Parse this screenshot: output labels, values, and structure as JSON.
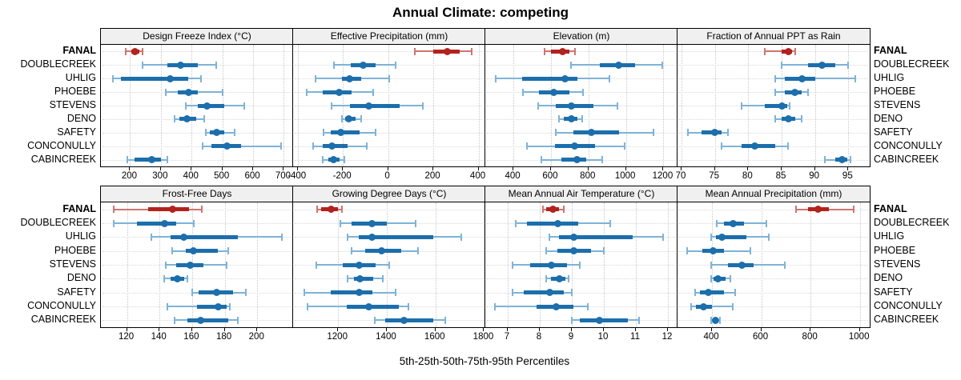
{
  "title": "Annual Climate: competing",
  "xlabel": "5th-25th-50th-75th-95th Percentiles",
  "sites": [
    "FANAL",
    "DOUBLECREEK",
    "UHLIG",
    "PHOEBE",
    "STEVENS",
    "DENO",
    "SAFETY",
    "CONCONULLY",
    "CABINCREEK"
  ],
  "highlight_site": "FANAL",
  "colors": {
    "highlight_main": "#b2231d",
    "highlight_light": "#cf7570",
    "normal_main": "#1c6eac",
    "normal_light": "#7fb3d8",
    "strip_bg": "#f0f0f0",
    "grid": "#c9c9c9"
  },
  "chart_data": {
    "type": "dotplot-intervals",
    "percentiles": [
      "5th",
      "25th",
      "50th",
      "75th",
      "95th"
    ],
    "legend_note": "5th-25th-50th-75th-95th Percentiles",
    "grid": "dotted",
    "panels": [
      {
        "title": "Design Freeze Index (°C)",
        "xlim": [
          105,
          730
        ],
        "ticks": [
          200,
          300,
          400,
          500,
          600,
          700
        ],
        "series": [
          [
            185,
            205,
            215,
            230,
            240
          ],
          [
            240,
            320,
            365,
            420,
            480
          ],
          [
            145,
            170,
            330,
            390,
            430
          ],
          [
            315,
            355,
            390,
            420,
            500
          ],
          [
            380,
            420,
            450,
            505,
            570
          ],
          [
            345,
            360,
            385,
            415,
            440
          ],
          [
            445,
            460,
            480,
            505,
            540
          ],
          [
            435,
            465,
            515,
            560,
            690
          ],
          [
            190,
            215,
            270,
            300,
            320
          ]
        ]
      },
      {
        "title": "Effective Precipitation (mm)",
        "xlim": [
          -420,
          430
        ],
        "ticks": [
          -400,
          -200,
          0,
          200,
          400
        ],
        "series": [
          [
            120,
            200,
            260,
            315,
            370
          ],
          [
            -240,
            -165,
            -110,
            -55,
            35
          ],
          [
            -320,
            -205,
            -170,
            -120,
            5
          ],
          [
            -360,
            -290,
            -215,
            -160,
            -65
          ],
          [
            -250,
            -170,
            -85,
            50,
            155
          ],
          [
            -205,
            -190,
            -175,
            -145,
            -120
          ],
          [
            -285,
            -255,
            -210,
            -125,
            -55
          ],
          [
            -330,
            -290,
            -250,
            -180,
            -95
          ],
          [
            -290,
            -265,
            -240,
            -215,
            -195
          ]
        ]
      },
      {
        "title": "Elevation (m)",
        "xlim": [
          250,
          1275
        ],
        "ticks": [
          400,
          600,
          800,
          1000,
          1200
        ],
        "series": [
          [
            565,
            600,
            660,
            700,
            730
          ],
          [
            705,
            860,
            960,
            1050,
            1195
          ],
          [
            305,
            445,
            675,
            740,
            910
          ],
          [
            450,
            535,
            615,
            700,
            770
          ],
          [
            530,
            625,
            710,
            825,
            955
          ],
          [
            645,
            670,
            710,
            740,
            765
          ],
          [
            625,
            720,
            815,
            965,
            1145
          ],
          [
            470,
            620,
            725,
            835,
            995
          ],
          [
            550,
            655,
            740,
            790,
            875
          ]
        ]
      },
      {
        "title": "Fraction of Annual PPT as Rain",
        "xlim": [
          69.4,
          98.2
        ],
        "ticks": [
          70,
          75,
          80,
          85,
          90,
          95
        ],
        "series": [
          [
            82.5,
            85,
            86,
            86.5,
            87
          ],
          [
            85,
            89,
            91,
            93,
            95
          ],
          [
            84,
            85.5,
            88,
            90,
            96
          ],
          [
            84,
            85.5,
            87,
            88,
            89
          ],
          [
            79,
            82.5,
            85,
            85.9,
            86.2
          ],
          [
            84,
            85,
            86,
            87,
            88
          ],
          [
            71,
            73,
            75,
            76,
            77
          ],
          [
            76,
            79,
            81,
            84,
            86
          ],
          [
            91.5,
            93,
            94,
            94.8,
            95.3
          ]
        ]
      },
      {
        "title": "Frost-Free Days",
        "xlim": [
          104,
          222
        ],
        "ticks": [
          120,
          140,
          160,
          180,
          200
        ],
        "series": [
          [
            112,
            133,
            148,
            158,
            166
          ],
          [
            112,
            126,
            143,
            150,
            161
          ],
          [
            135,
            147,
            155,
            188,
            215
          ],
          [
            148,
            156,
            161,
            176,
            182
          ],
          [
            144,
            150,
            159,
            167,
            181
          ],
          [
            143,
            147,
            151,
            155,
            157
          ],
          [
            160,
            164,
            175,
            185,
            193
          ],
          [
            145,
            163,
            176,
            181,
            183
          ],
          [
            149,
            157,
            165,
            182,
            188
          ]
        ]
      },
      {
        "title": "Growing Degree Days (°C)",
        "xlim": [
          1015,
          1805
        ],
        "ticks": [
          1200,
          1400,
          1600,
          1800
        ],
        "series": [
          [
            1115,
            1130,
            1170,
            1200,
            1215
          ],
          [
            1210,
            1255,
            1340,
            1400,
            1520
          ],
          [
            1240,
            1285,
            1340,
            1590,
            1705
          ],
          [
            1255,
            1310,
            1380,
            1460,
            1530
          ],
          [
            1110,
            1220,
            1285,
            1355,
            1410
          ],
          [
            1240,
            1265,
            1290,
            1345,
            1385
          ],
          [
            1060,
            1170,
            1285,
            1340,
            1435
          ],
          [
            1075,
            1235,
            1325,
            1450,
            1490
          ],
          [
            1350,
            1395,
            1470,
            1590,
            1640
          ]
        ]
      },
      {
        "title": "Mean Annual Air Temperature (°C)",
        "xlim": [
          6.3,
          12.3
        ],
        "ticks": [
          7,
          8,
          9,
          10,
          11,
          12
        ],
        "series": [
          [
            8.1,
            8.2,
            8.4,
            8.6,
            8.75
          ],
          [
            7.25,
            7.6,
            8.55,
            9.2,
            10.2
          ],
          [
            8.3,
            8.6,
            9.05,
            10.9,
            11.85
          ],
          [
            8.2,
            8.55,
            9.05,
            9.6,
            10
          ],
          [
            7.15,
            7.7,
            8.35,
            8.85,
            9.25
          ],
          [
            8.2,
            8.35,
            8.6,
            8.8,
            8.9
          ],
          [
            7.15,
            7.5,
            8.3,
            8.75,
            9
          ],
          [
            6.6,
            7.9,
            8.5,
            9.05,
            9.5
          ],
          [
            9,
            9.25,
            9.85,
            10.75,
            11.1
          ]
        ]
      },
      {
        "title": "Mean Annual Precipitation (mm)",
        "xlim": [
          260,
          1040
        ],
        "ticks": [
          400,
          600,
          800,
          1000
        ],
        "series": [
          [
            740,
            790,
            830,
            875,
            975
          ],
          [
            420,
            450,
            487,
            530,
            620
          ],
          [
            395,
            415,
            440,
            540,
            630
          ],
          [
            300,
            360,
            405,
            450,
            555
          ],
          [
            395,
            465,
            520,
            570,
            695
          ],
          [
            395,
            405,
            425,
            455,
            475
          ],
          [
            330,
            350,
            385,
            450,
            495
          ],
          [
            315,
            335,
            365,
            400,
            485
          ],
          [
            395,
            403,
            413,
            426,
            432
          ]
        ]
      }
    ]
  }
}
